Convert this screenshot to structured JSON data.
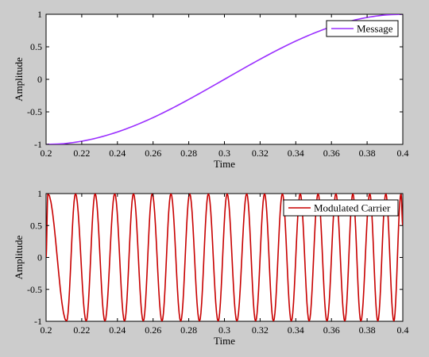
{
  "chart_data": [
    {
      "type": "line",
      "xlabel": "Time",
      "ylabel": "Amplitude",
      "xlim": [
        0.2,
        0.4
      ],
      "ylim": [
        -1,
        1
      ],
      "xticks": [
        0.2,
        0.22,
        0.24,
        0.26,
        0.28,
        0.3,
        0.32,
        0.34,
        0.36,
        0.38,
        0.4
      ],
      "yticks": [
        -1,
        -0.5,
        0,
        0.5,
        1
      ],
      "xtick_labels": [
        "0.2",
        "0.22",
        "0.24",
        "0.26",
        "0.28",
        "0.3",
        "0.32",
        "0.34",
        "0.36",
        "0.38",
        "0.4"
      ],
      "ytick_labels": [
        "-1",
        "-0.5",
        "0",
        "0.5",
        "1"
      ],
      "legend_position": "top-right",
      "grid": false,
      "series": [
        {
          "name": "Message",
          "color": "#9b30ff",
          "x": [
            0.2,
            0.21,
            0.22,
            0.23,
            0.24,
            0.25,
            0.26,
            0.27,
            0.28,
            0.29,
            0.3,
            0.31,
            0.32,
            0.33,
            0.34,
            0.35,
            0.36,
            0.37,
            0.38,
            0.39,
            0.4
          ],
          "y": [
            -1.0,
            -0.988,
            -0.951,
            -0.891,
            -0.809,
            -0.707,
            -0.588,
            -0.454,
            -0.309,
            -0.156,
            0.0,
            0.156,
            0.309,
            0.454,
            0.588,
            0.707,
            0.809,
            0.891,
            0.951,
            0.988,
            1.0
          ]
        }
      ]
    },
    {
      "type": "line",
      "xlabel": "Time",
      "ylabel": "Amplitude",
      "xlim": [
        0.2,
        0.4
      ],
      "ylim": [
        -1,
        1
      ],
      "xticks": [
        0.2,
        0.22,
        0.24,
        0.26,
        0.28,
        0.3,
        0.32,
        0.34,
        0.36,
        0.38,
        0.4
      ],
      "yticks": [
        -1,
        -0.5,
        0,
        0.5,
        1
      ],
      "xtick_labels": [
        "0.2",
        "0.22",
        "0.24",
        "0.26",
        "0.28",
        "0.3",
        "0.32",
        "0.34",
        "0.36",
        "0.38",
        "0.4"
      ],
      "ytick_labels": [
        "-1",
        "-0.5",
        "0",
        "0.5",
        "1"
      ],
      "legend_position": "top-right",
      "grid": false,
      "series": [
        {
          "name": "Modulated Carrier",
          "color": "#c80000",
          "x": [
            0.2,
            0.201,
            0.2115,
            0.2165,
            0.2225,
            0.2275,
            0.233,
            0.2385,
            0.244,
            0.249,
            0.2545,
            0.2595,
            0.265,
            0.27,
            0.2755,
            0.2805,
            0.286,
            0.291,
            0.2965,
            0.3015,
            0.307,
            0.3125,
            0.3175,
            0.3225,
            0.3275,
            0.3325,
            0.3375,
            0.3425,
            0.3475,
            0.3525,
            0.3575,
            0.3625,
            0.3675,
            0.372,
            0.3765,
            0.3815,
            0.386,
            0.3905,
            0.395,
            0.399,
            0.4
          ],
          "y": [
            0,
            1,
            -1,
            1,
            -1,
            1,
            -1,
            1,
            -1,
            1,
            -1,
            1,
            -1,
            1,
            -1,
            1,
            -1,
            1,
            -1,
            1,
            -1,
            1,
            -1,
            1,
            -1,
            1,
            -1,
            1,
            -1,
            1,
            -1,
            1,
            -1,
            1,
            -1,
            1,
            -1,
            1,
            -1,
            1,
            0.5
          ]
        }
      ]
    }
  ]
}
